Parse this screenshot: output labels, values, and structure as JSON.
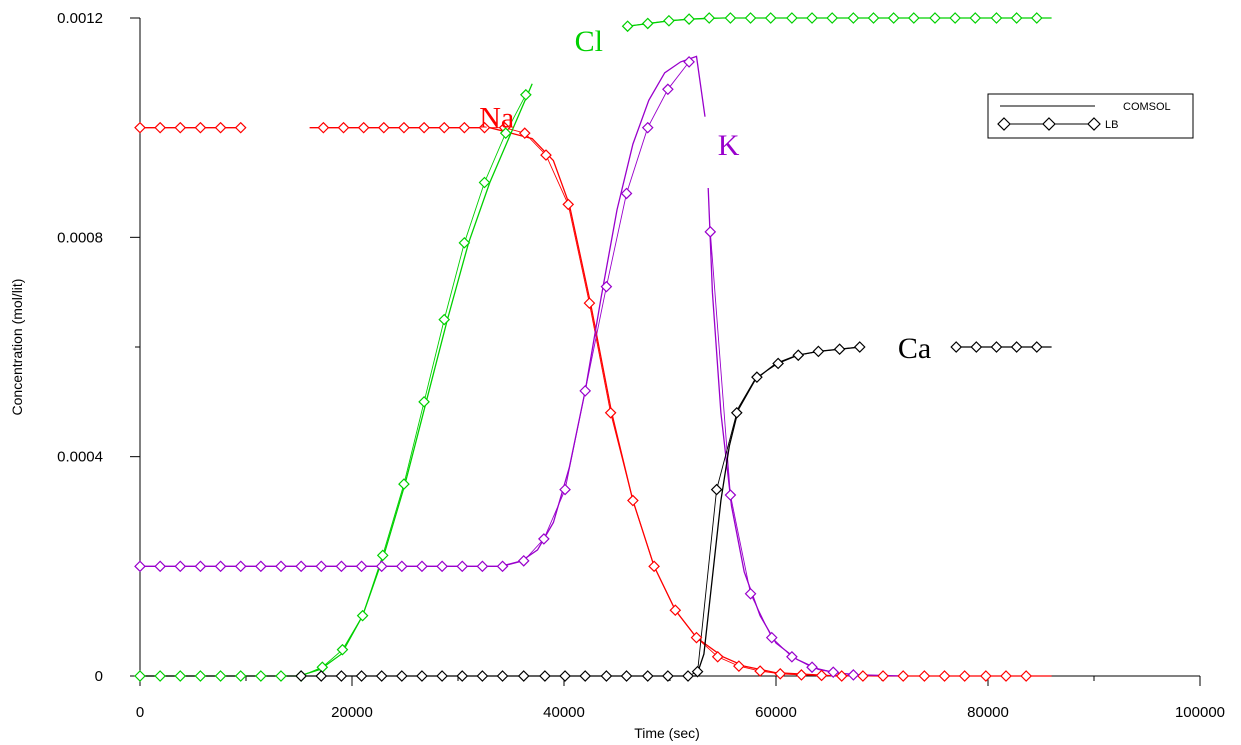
{
  "chart_data": {
    "type": "line",
    "xlabel": "Time (sec)",
    "ylabel": "Concentration (mol/lit)",
    "xlim": [
      0,
      100000
    ],
    "ylim": [
      0,
      0.0012
    ],
    "x_ticks": [
      0,
      20000,
      40000,
      60000,
      80000,
      100000
    ],
    "x_tick_labels": [
      "0",
      "20000",
      "40000",
      "60000",
      "80000",
      "100000"
    ],
    "y_ticks": [
      0,
      0.0004,
      0.0008,
      0.0012
    ],
    "y_tick_labels": [
      "0",
      "0.0004",
      "0.0008",
      "0.0012"
    ],
    "grid": false,
    "legend": {
      "placement": "top-right",
      "entries": [
        {
          "label": "COMSOL",
          "style": "line"
        },
        {
          "label": "LB",
          "style": "line-diamond"
        }
      ]
    },
    "annotations": [
      {
        "text": "Na",
        "color": "#ff0000",
        "x": 32000,
        "y": 0.001
      },
      {
        "text": "Cl",
        "color": "#00d000",
        "x": 41000,
        "y": 0.00114
      },
      {
        "text": "K",
        "color": "#9900cc",
        "x": 54500,
        "y": 0.00095
      },
      {
        "text": "Ca",
        "color": "#000000",
        "x": 71500,
        "y": 0.00058
      }
    ],
    "series": [
      {
        "name": "Na",
        "color": "#ff0000",
        "comsol": [
          {
            "x": [
              0,
              10000
            ],
            "y": [
              0.001,
              0.001
            ]
          },
          {
            "x": [
              16000,
              33000,
              35000,
              37000,
              39000,
              40500,
              42500,
              44500,
              46500,
              48500,
              50500,
              52500,
              55000,
              57000,
              60000,
              65000,
              70000,
              86000
            ],
            "y": [
              0.001,
              0.001,
              0.00099,
              0.00098,
              0.00094,
              0.00086,
              0.00068,
              0.00048,
              0.00032,
              0.0002,
              0.00012,
              7e-05,
              3.5e-05,
              1.8e-05,
              6e-06,
              1e-06,
              0,
              0
            ]
          }
        ],
        "lb": [
          {
            "x": [
              0,
              1900,
              3800,
              5700,
              7600,
              9500
            ],
            "y": [
              0.001,
              0.001,
              0.001,
              0.001,
              0.001,
              0.001
            ]
          },
          {
            "x": [
              17300,
              19200,
              21100,
              23000,
              24900,
              26800,
              28700,
              30600,
              32500,
              34400,
              36300,
              38300,
              40400,
              42400,
              44400,
              46500,
              48500,
              50500,
              52500,
              54500,
              56500,
              58500,
              60400,
              62400,
              64300,
              66200,
              68200,
              70100,
              72000,
              74000,
              75900,
              77800,
              79800,
              81700,
              83600
            ],
            "y": [
              0.001,
              0.001,
              0.001,
              0.001,
              0.001,
              0.001,
              0.001,
              0.001,
              0.001,
              0.001,
              0.00099,
              0.00095,
              0.00086,
              0.00068,
              0.00048,
              0.00032,
              0.0002,
              0.00012,
              7e-05,
              3.5e-05,
              1.8e-05,
              9e-06,
              4e-06,
              2e-06,
              1e-06,
              0,
              0,
              0,
              0,
              0,
              0,
              0,
              0,
              0,
              0
            ]
          }
        ]
      },
      {
        "name": "Cl",
        "color": "#00d000",
        "comsol": [
          {
            "x": [
              0,
              15000,
              17000,
              19000,
              21000,
              23000,
              25000,
              27000,
              29000,
              31000,
              33000,
              35000,
              37000
            ],
            "y": [
              0,
              0,
              1.2e-05,
              4e-05,
              0.00011,
              0.00022,
              0.00035,
              0.0005,
              0.00065,
              0.00079,
              0.0009,
              0.00099,
              0.00108
            ]
          },
          {
            "x": [
              46000,
              48000,
              50000,
              52000,
              55000,
              60000,
              86000
            ],
            "y": [
              0.001185,
              0.00119,
              0.001195,
              0.001198,
              0.0012,
              0.0012,
              0.0012
            ]
          }
        ],
        "lb": [
          {
            "x": [
              0,
              1900,
              3800,
              5700,
              7600,
              9500,
              11400,
              13300,
              15200,
              17200,
              19100,
              21000,
              22900,
              24900,
              26800,
              28700,
              30600,
              32500,
              34500,
              36400
            ],
            "y": [
              0,
              0,
              0,
              0,
              0,
              0,
              0,
              0,
              0,
              1.6e-05,
              4.8e-05,
              0.00011,
              0.00022,
              0.00035,
              0.0005,
              0.00065,
              0.00079,
              0.0009,
              0.00099,
              0.00106
            ]
          },
          {
            "x": [
              46000,
              47900,
              49900,
              51800,
              53700,
              55700,
              57600,
              59500,
              61500,
              63400,
              65300,
              67300,
              69200,
              71100,
              73000,
              75000,
              76900,
              78800,
              80800,
              82700,
              84600
            ],
            "y": [
              0.001185,
              0.00119,
              0.001195,
              0.001198,
              0.0012,
              0.0012,
              0.0012,
              0.0012,
              0.0012,
              0.0012,
              0.0012,
              0.0012,
              0.0012,
              0.0012,
              0.0012,
              0.0012,
              0.0012,
              0.0012,
              0.0012,
              0.0012,
              0.0012
            ]
          }
        ]
      },
      {
        "name": "K",
        "color": "#9900cc",
        "comsol": [
          {
            "x": [
              0,
              34000,
              36000,
              37500,
              39000,
              40500,
              42000,
              43500,
              45000,
              46500,
              48000,
              49500,
              51000,
              52500,
              53300
            ],
            "y": [
              0.0002,
              0.0002,
              0.00021,
              0.00023,
              0.00028,
              0.00038,
              0.00052,
              0.00069,
              0.00085,
              0.00097,
              0.00105,
              0.0011,
              0.00112,
              0.00113,
              0.00102
            ]
          },
          {
            "x": [
              53600,
              54000,
              54800,
              55800,
              57000,
              58500,
              60000,
              62000,
              64000,
              66000,
              68000,
              72000
            ],
            "y": [
              0.00089,
              0.0007,
              0.00048,
              0.00031,
              0.00019,
              0.00011,
              6e-05,
              3e-05,
              1.2e-05,
              5e-06,
              2e-06,
              0
            ]
          }
        ],
        "lb": [
          {
            "x": [
              0,
              1900,
              3800,
              5700,
              7600,
              9500,
              11400,
              13300,
              15200,
              17100,
              19000,
              20900,
              22800,
              24700,
              26600,
              28500,
              30400,
              32300,
              34200,
              36200,
              38100,
              40100,
              42000,
              44000,
              45900,
              47900,
              49800,
              51800
            ],
            "y": [
              0.0002,
              0.0002,
              0.0002,
              0.0002,
              0.0002,
              0.0002,
              0.0002,
              0.0002,
              0.0002,
              0.0002,
              0.0002,
              0.0002,
              0.0002,
              0.0002,
              0.0002,
              0.0002,
              0.0002,
              0.0002,
              0.0002,
              0.00021,
              0.00025,
              0.00034,
              0.00052,
              0.00071,
              0.00088,
              0.001,
              0.00107,
              0.00112
            ]
          },
          {
            "x": [
              53800,
              55700,
              57600,
              59600,
              61500,
              63400,
              65400,
              67300
            ],
            "y": [
              0.00081,
              0.00033,
              0.00015,
              7e-05,
              3.5e-05,
              1.6e-05,
              7e-06,
              2e-06
            ]
          }
        ]
      },
      {
        "name": "Ca",
        "color": "#000000",
        "comsol": [
          {
            "x": [
              0,
              52500,
              53200,
              54000,
              54800,
              55600,
              56500,
              58000,
              60000,
              62000,
              64000,
              66000,
              68000
            ],
            "y": [
              0,
              0,
              4e-05,
              0.00018,
              0.00032,
              0.00042,
              0.00049,
              0.00054,
              0.00057,
              0.000585,
              0.000592,
              0.000596,
              0.0006
            ]
          },
          {
            "x": [
              77000,
              86000
            ],
            "y": [
              0.0006,
              0.0006
            ]
          }
        ],
        "lb": [
          {
            "x": [
              15200,
              17100,
              19000,
              20900,
              22800,
              24700,
              26600,
              28500,
              30400,
              32300,
              34200,
              36200,
              38200,
              40100,
              42000,
              44000,
              45900,
              47900,
              49800,
              51700,
              52600,
              54400,
              56300,
              58200,
              60200,
              62100,
              64000,
              66000,
              67900
            ],
            "y": [
              0,
              0,
              0,
              0,
              0,
              0,
              0,
              0,
              0,
              0,
              0,
              0,
              0,
              0,
              0,
              0,
              0,
              0,
              0,
              0,
              8e-06,
              0.00034,
              0.00048,
              0.000545,
              0.00057,
              0.000585,
              0.000592,
              0.000596,
              0.0006
            ]
          },
          {
            "x": [
              77000,
              78900,
              80800,
              82700,
              84600
            ],
            "y": [
              0.0006,
              0.0006,
              0.0006,
              0.0006,
              0.0006
            ]
          }
        ]
      }
    ]
  }
}
